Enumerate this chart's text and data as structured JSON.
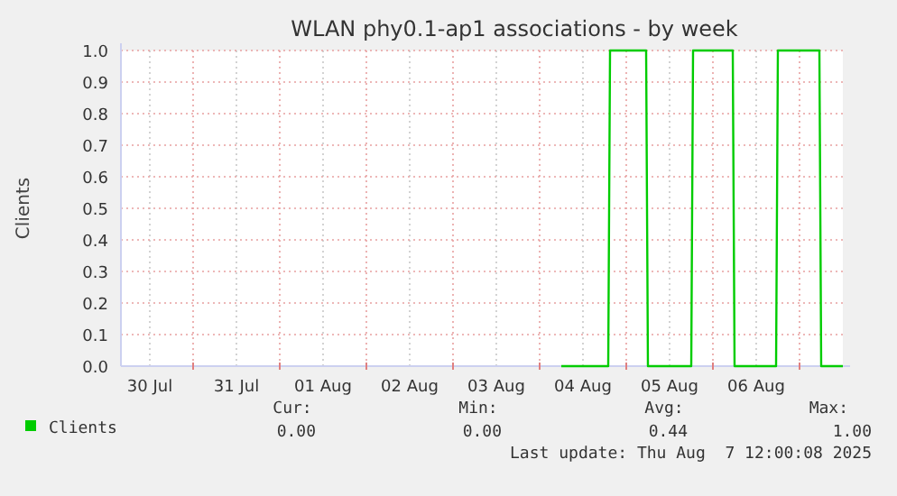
{
  "chart_data": {
    "type": "line",
    "title": "WLAN phy0.1-ap1 associations - by week",
    "ylabel": "Clients",
    "xlim": [
      "2025-07-30T04:00",
      "2025-08-07T12:00"
    ],
    "xticks": [
      {
        "value": "2025-07-30T12:00",
        "label": "30 Jul"
      },
      {
        "value": "2025-07-31T00:00",
        "label": null
      },
      {
        "value": "2025-07-31T12:00",
        "label": "31 Jul"
      },
      {
        "value": "2025-08-01T00:00",
        "label": null
      },
      {
        "value": "2025-08-01T12:00",
        "label": "01 Aug"
      },
      {
        "value": "2025-08-02T00:00",
        "label": null
      },
      {
        "value": "2025-08-02T12:00",
        "label": "02 Aug"
      },
      {
        "value": "2025-08-03T00:00",
        "label": null
      },
      {
        "value": "2025-08-03T12:00",
        "label": "03 Aug"
      },
      {
        "value": "2025-08-04T00:00",
        "label": null
      },
      {
        "value": "2025-08-04T12:00",
        "label": "04 Aug"
      },
      {
        "value": "2025-08-05T00:00",
        "label": null
      },
      {
        "value": "2025-08-05T12:00",
        "label": "05 Aug"
      },
      {
        "value": "2025-08-06T00:00",
        "label": null
      },
      {
        "value": "2025-08-06T12:00",
        "label": "06 Aug"
      },
      {
        "value": "2025-08-07T00:00",
        "label": null
      }
    ],
    "ylim": [
      0,
      1
    ],
    "yticks": [
      {
        "value": 0,
        "label": "0.0"
      },
      {
        "value": 0.1,
        "label": "0.1"
      },
      {
        "value": 0.2,
        "label": "0.2"
      },
      {
        "value": 0.3,
        "label": "0.3"
      },
      {
        "value": 0.4,
        "label": "0.4"
      },
      {
        "value": 0.5,
        "label": "0.5"
      },
      {
        "value": 0.6,
        "label": "0.6"
      },
      {
        "value": 0.7,
        "label": "0.7"
      },
      {
        "value": 0.8,
        "label": "0.8"
      },
      {
        "value": 0.9,
        "label": "0.9"
      },
      {
        "value": 1,
        "label": "1.0"
      }
    ],
    "grid": true,
    "legend": "bottom",
    "marker": "none",
    "line_style": "solid",
    "series": [
      {
        "name": "Clients",
        "color": "#00cc00",
        "x": [
          "2025-08-04T06:00",
          "2025-08-04T19:00",
          "2025-08-04T19:30",
          "2025-08-05T05:30",
          "2025-08-05T06:00",
          "2025-08-05T18:00",
          "2025-08-05T18:30",
          "2025-08-06T05:30",
          "2025-08-06T06:00",
          "2025-08-06T17:30",
          "2025-08-06T18:00",
          "2025-08-07T05:30",
          "2025-08-07T06:00",
          "2025-08-07T12:00"
        ],
        "values": [
          0,
          0,
          1,
          1,
          0,
          0,
          1,
          1,
          0,
          0,
          1,
          1,
          0,
          0
        ]
      }
    ],
    "annotations": [
      "Cur:",
      "Min:",
      "Avg:",
      "Max:",
      "0.00",
      "0.00",
      "0.44",
      "1.00",
      "Last update: Thu Aug  7 12:00:08 2025"
    ]
  }
}
